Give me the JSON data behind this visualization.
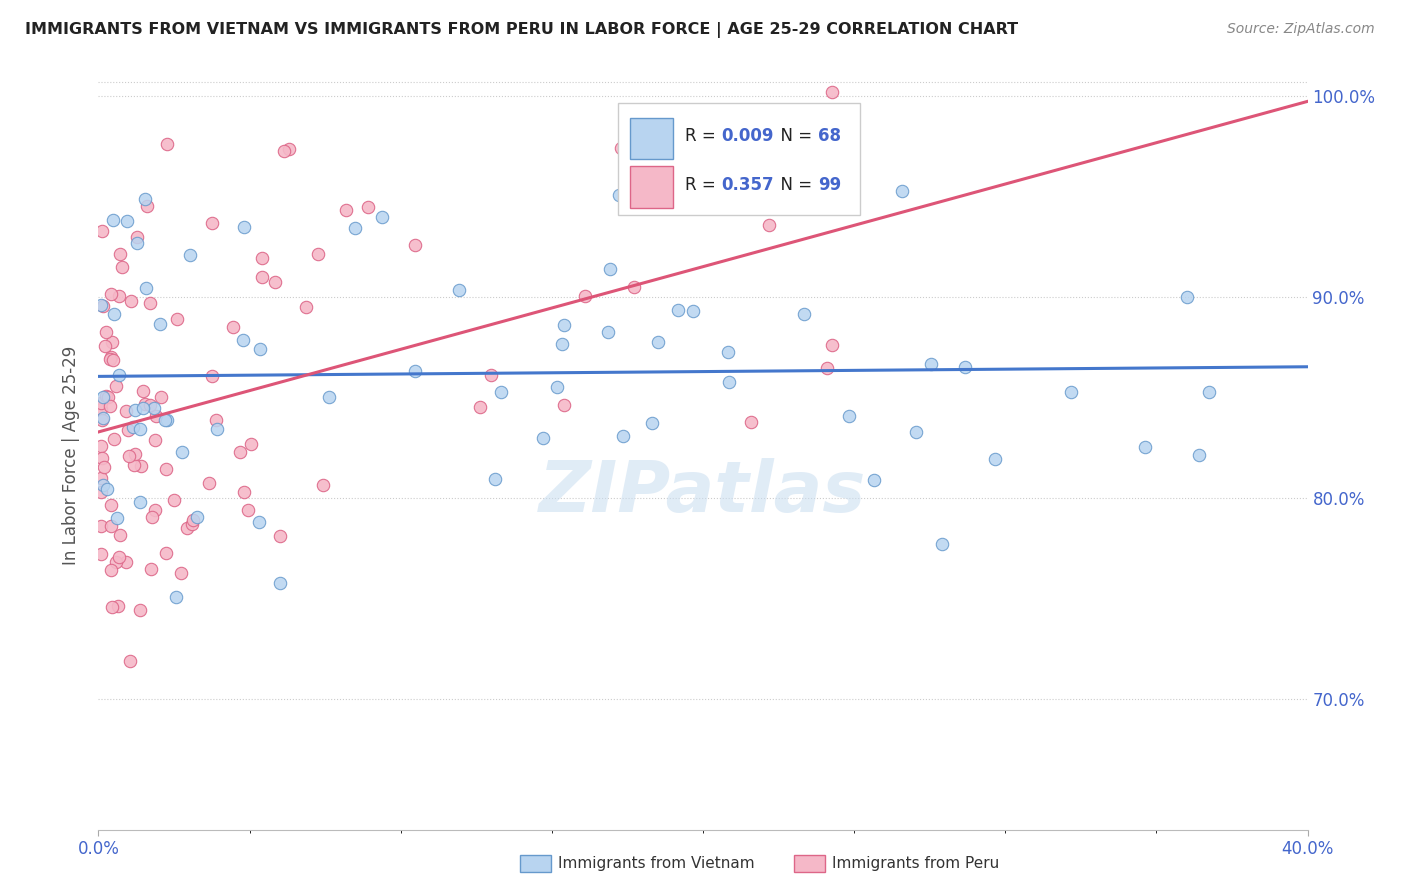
{
  "title": "IMMIGRANTS FROM VIETNAM VS IMMIGRANTS FROM PERU IN LABOR FORCE | AGE 25-29 CORRELATION CHART",
  "source": "Source: ZipAtlas.com",
  "yaxis_label": "In Labor Force | Age 25-29",
  "legend_vietnam_r": "0.009",
  "legend_vietnam_n": "68",
  "legend_peru_r": "0.357",
  "legend_peru_n": "99",
  "color_vietnam_fill": "#b8d4f0",
  "color_vietnam_edge": "#6699cc",
  "color_peru_fill": "#f5b8c8",
  "color_peru_edge": "#dd6688",
  "color_line_vietnam": "#4477cc",
  "color_line_peru": "#dd5577",
  "color_text_blue": "#4466cc",
  "color_axis_label": "#4466cc",
  "background": "#ffffff",
  "xmin": 0.0,
  "xmax": 0.4,
  "ymin": 0.635,
  "ymax": 1.008,
  "y_ticks": [
    0.7,
    0.8,
    0.9,
    1.0
  ],
  "y_tick_labels": [
    "70.0%",
    "80.0%",
    "90.0%",
    "100.0%"
  ],
  "watermark": "ZIPatlas",
  "watermark_color": "#c8ddf0",
  "bottom_legend_vietnam": "Immigrants from Vietnam",
  "bottom_legend_peru": "Immigrants from Peru"
}
